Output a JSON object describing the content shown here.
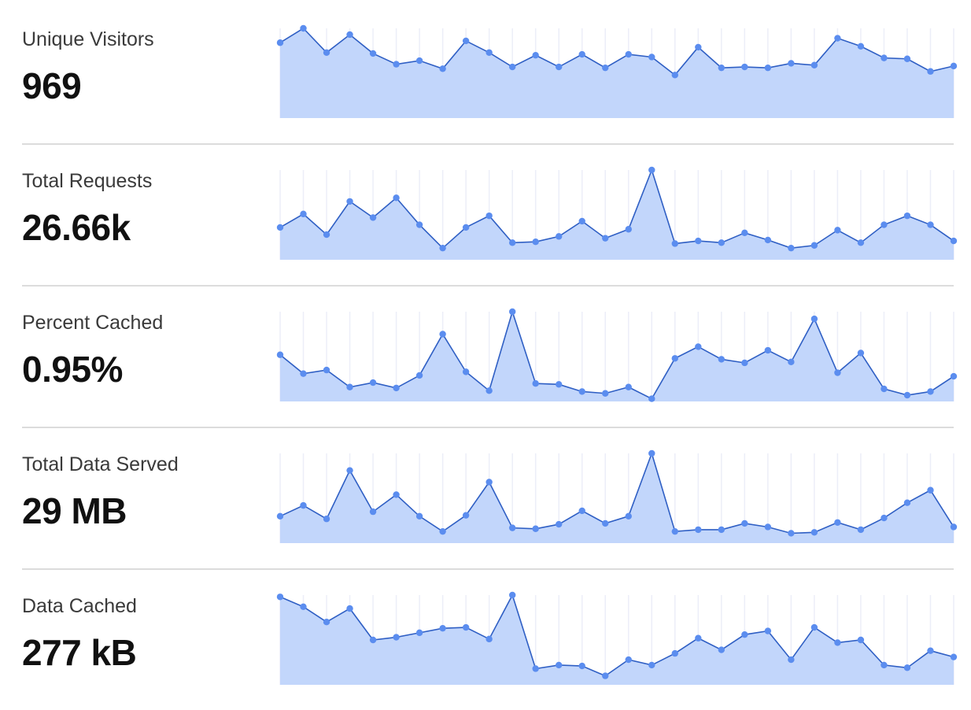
{
  "metrics": [
    {
      "label": "Unique Visitors",
      "value": "969"
    },
    {
      "label": "Total Requests",
      "value": "26.66k"
    },
    {
      "label": "Percent Cached",
      "value": "0.95%"
    },
    {
      "label": "Total Data Served",
      "value": "29 MB"
    },
    {
      "label": "Data Cached",
      "value": "277 kB"
    }
  ],
  "colors": {
    "line": "#2f5fc4",
    "point": "#5b8def",
    "fill": "#c2d6fb",
    "grid": "#eceef8"
  },
  "chart_data": [
    {
      "type": "area",
      "values": [
        0.84,
        1.0,
        0.73,
        0.93,
        0.72,
        0.6,
        0.64,
        0.55,
        0.86,
        0.73,
        0.57,
        0.7,
        0.57,
        0.71,
        0.56,
        0.71,
        0.68,
        0.48,
        0.79,
        0.56,
        0.57,
        0.56,
        0.61,
        0.59,
        0.89,
        0.8,
        0.67,
        0.66,
        0.52,
        0.58
      ]
    },
    {
      "type": "area",
      "values": [
        0.36,
        0.51,
        0.28,
        0.65,
        0.47,
        0.69,
        0.39,
        0.13,
        0.36,
        0.49,
        0.19,
        0.2,
        0.26,
        0.43,
        0.24,
        0.34,
        1.0,
        0.18,
        0.21,
        0.19,
        0.3,
        0.22,
        0.13,
        0.16,
        0.33,
        0.19,
        0.39,
        0.49,
        0.39,
        0.21
      ]
    },
    {
      "type": "area",
      "values": [
        0.52,
        0.31,
        0.35,
        0.16,
        0.21,
        0.15,
        0.29,
        0.75,
        0.33,
        0.12,
        1.0,
        0.2,
        0.19,
        0.11,
        0.09,
        0.16,
        0.03,
        0.48,
        0.61,
        0.47,
        0.43,
        0.57,
        0.44,
        0.92,
        0.32,
        0.54,
        0.14,
        0.07,
        0.11,
        0.28
      ]
    },
    {
      "type": "area",
      "values": [
        0.3,
        0.42,
        0.27,
        0.81,
        0.35,
        0.54,
        0.3,
        0.13,
        0.31,
        0.68,
        0.17,
        0.16,
        0.21,
        0.36,
        0.22,
        0.3,
        1.0,
        0.13,
        0.15,
        0.15,
        0.22,
        0.18,
        0.11,
        0.12,
        0.23,
        0.15,
        0.28,
        0.45,
        0.59,
        0.18
      ]
    },
    {
      "type": "area",
      "values": [
        0.98,
        0.87,
        0.7,
        0.85,
        0.5,
        0.53,
        0.58,
        0.63,
        0.64,
        0.51,
        1.0,
        0.18,
        0.22,
        0.21,
        0.1,
        0.28,
        0.22,
        0.35,
        0.52,
        0.39,
        0.56,
        0.6,
        0.28,
        0.64,
        0.47,
        0.5,
        0.22,
        0.19,
        0.38,
        0.31
      ]
    }
  ]
}
